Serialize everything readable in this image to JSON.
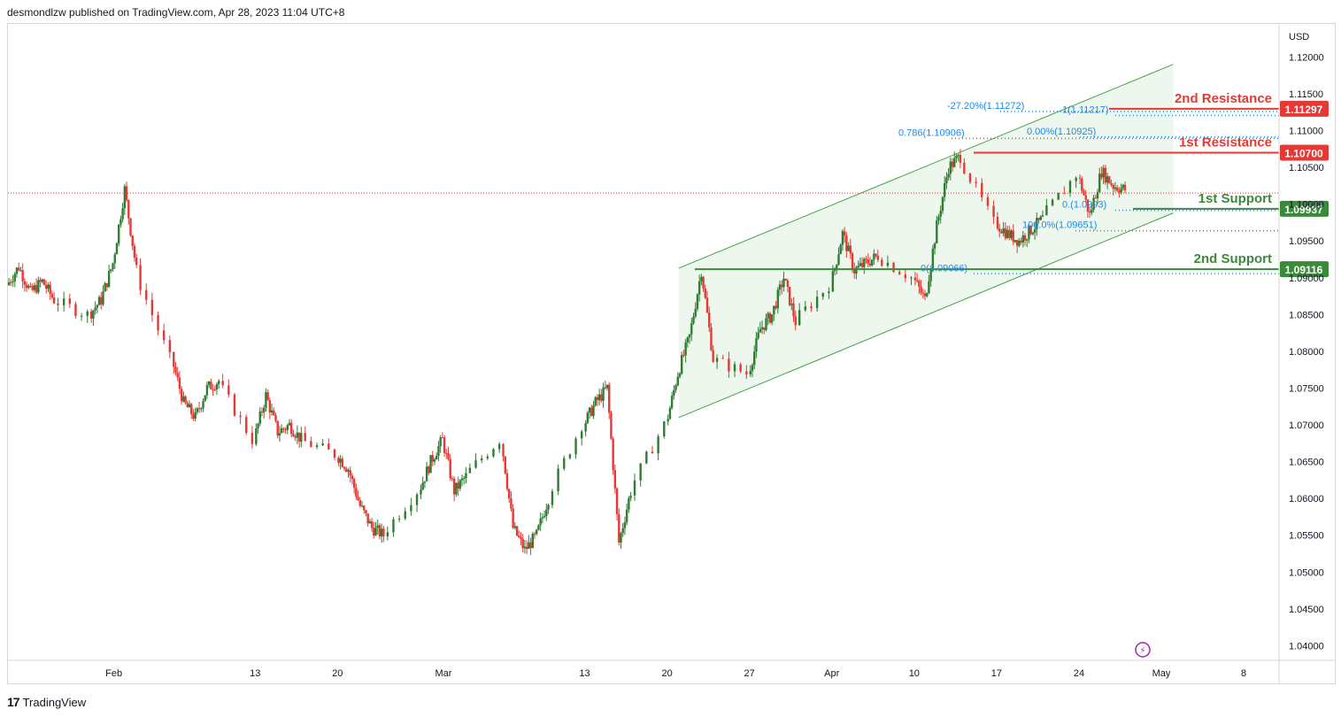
{
  "header": {
    "attribution": "desmondlzw published on TradingView.com, Apr 28, 2023 11:04 UTC+8"
  },
  "footer": {
    "logo_text": "TradingView"
  },
  "colors": {
    "up": "#2e7d32",
    "down": "#e53935",
    "resistance": "#e53935",
    "support": "#3a8a3a",
    "channel_fill": "#e8f5e9",
    "fib": "#1e88e5"
  },
  "chart_data": {
    "type": "candlestick",
    "symbol_currency": "USD",
    "ylim": [
      1.038,
      1.1245
    ],
    "y_ticks": [
      "1.04000",
      "1.04500",
      "1.05000",
      "1.05500",
      "1.06000",
      "1.06500",
      "1.07000",
      "1.07500",
      "1.08000",
      "1.08500",
      "1.09000",
      "1.09500",
      "1.10000",
      "1.10500",
      "1.11000",
      "1.11500",
      "1.12000"
    ],
    "x_ticks": [
      {
        "label": "Feb",
        "date": "2023-02-01"
      },
      {
        "label": "13",
        "date": "2023-02-13"
      },
      {
        "label": "20",
        "date": "2023-02-20"
      },
      {
        "label": "Mar",
        "date": "2023-03-01"
      },
      {
        "label": "13",
        "date": "2023-03-13"
      },
      {
        "label": "20",
        "date": "2023-03-20"
      },
      {
        "label": "27",
        "date": "2023-03-27"
      },
      {
        "label": "Apr",
        "date": "2023-04-03"
      },
      {
        "label": "10",
        "date": "2023-04-10"
      },
      {
        "label": "17",
        "date": "2023-04-17"
      },
      {
        "label": "24",
        "date": "2023-04-24"
      },
      {
        "label": "May",
        "date": "2023-05-01"
      },
      {
        "label": "8",
        "date": "2023-05-08"
      }
    ],
    "price_path": [
      {
        "date": "2023-01-23",
        "price": 1.089
      },
      {
        "date": "2023-01-24",
        "price": 1.0915
      },
      {
        "date": "2023-01-25",
        "price": 1.088
      },
      {
        "date": "2023-01-26",
        "price": 1.0895
      },
      {
        "date": "2023-01-27",
        "price": 1.087
      },
      {
        "date": "2023-01-30",
        "price": 1.085
      },
      {
        "date": "2023-01-31",
        "price": 1.087
      },
      {
        "date": "2023-02-01",
        "price": 1.092
      },
      {
        "date": "2023-02-02",
        "price": 1.102
      },
      {
        "date": "2023-02-03",
        "price": 1.091
      },
      {
        "date": "2023-02-06",
        "price": 1.079
      },
      {
        "date": "2023-02-07",
        "price": 1.073
      },
      {
        "date": "2023-02-08",
        "price": 1.071
      },
      {
        "date": "2023-02-09",
        "price": 1.075
      },
      {
        "date": "2023-02-10",
        "price": 1.076
      },
      {
        "date": "2023-02-13",
        "price": 1.068
      },
      {
        "date": "2023-02-14",
        "price": 1.074
      },
      {
        "date": "2023-02-15",
        "price": 1.069
      },
      {
        "date": "2023-02-16",
        "price": 1.07
      },
      {
        "date": "2023-02-17",
        "price": 1.068
      },
      {
        "date": "2023-02-20",
        "price": 1.066
      },
      {
        "date": "2023-02-21",
        "price": 1.064
      },
      {
        "date": "2023-02-22",
        "price": 1.059
      },
      {
        "date": "2023-02-23",
        "price": 1.056
      },
      {
        "date": "2023-02-24",
        "price": 1.055
      },
      {
        "date": "2023-02-27",
        "price": 1.061
      },
      {
        "date": "2023-02-28",
        "price": 1.065
      },
      {
        "date": "2023-03-01",
        "price": 1.068
      },
      {
        "date": "2023-03-02",
        "price": 1.061
      },
      {
        "date": "2023-03-03",
        "price": 1.063
      },
      {
        "date": "2023-03-06",
        "price": 1.068
      },
      {
        "date": "2023-03-07",
        "price": 1.056
      },
      {
        "date": "2023-03-08",
        "price": 1.053
      },
      {
        "date": "2023-03-09",
        "price": 1.055
      },
      {
        "date": "2023-03-10",
        "price": 1.06
      },
      {
        "date": "2023-03-13",
        "price": 1.07
      },
      {
        "date": "2023-03-14",
        "price": 1.073
      },
      {
        "date": "2023-03-15",
        "price": 1.075
      },
      {
        "date": "2023-03-16",
        "price": 1.054
      },
      {
        "date": "2023-03-17",
        "price": 1.061
      },
      {
        "date": "2023-03-20",
        "price": 1.07
      },
      {
        "date": "2023-03-21",
        "price": 1.077
      },
      {
        "date": "2023-03-22",
        "price": 1.082
      },
      {
        "date": "2023-03-23",
        "price": 1.091
      },
      {
        "date": "2023-03-24",
        "price": 1.079
      },
      {
        "date": "2023-03-27",
        "price": 1.077
      },
      {
        "date": "2023-03-28",
        "price": 1.083
      },
      {
        "date": "2023-03-29",
        "price": 1.085
      },
      {
        "date": "2023-03-30",
        "price": 1.09
      },
      {
        "date": "2023-03-31",
        "price": 1.084
      },
      {
        "date": "2023-04-03",
        "price": 1.089
      },
      {
        "date": "2023-04-04",
        "price": 1.096
      },
      {
        "date": "2023-04-05",
        "price": 1.091
      },
      {
        "date": "2023-04-06",
        "price": 1.092
      },
      {
        "date": "2023-04-07",
        "price": 1.093
      },
      {
        "date": "2023-04-10",
        "price": 1.09
      },
      {
        "date": "2023-04-11",
        "price": 1.087
      },
      {
        "date": "2023-04-12",
        "price": 1.097
      },
      {
        "date": "2023-04-13",
        "price": 1.105
      },
      {
        "date": "2023-04-14",
        "price": 1.1065
      },
      {
        "date": "2023-04-17",
        "price": 1.0975
      },
      {
        "date": "2023-04-18",
        "price": 1.096
      },
      {
        "date": "2023-04-19",
        "price": 1.095
      },
      {
        "date": "2023-04-20",
        "price": 1.0965
      },
      {
        "date": "2023-04-21",
        "price": 1.098
      },
      {
        "date": "2023-04-24",
        "price": 1.104
      },
      {
        "date": "2023-04-25",
        "price": 1.0985
      },
      {
        "date": "2023-04-26",
        "price": 1.1045
      },
      {
        "date": "2023-04-27",
        "price": 1.1025
      },
      {
        "date": "2023-04-28",
        "price": 1.102
      }
    ],
    "current_price_line": 1.1015,
    "levels": [
      {
        "name": "2nd Resistance",
        "value": 1.11297,
        "label": "1.11297",
        "kind": "resistance"
      },
      {
        "name": "1st Resistance",
        "value": 1.107,
        "label": "1.10700",
        "kind": "resistance"
      },
      {
        "name": "1st Support",
        "value": 1.09937,
        "label": "1.09937",
        "kind": "support"
      },
      {
        "name": "2nd Support",
        "value": 1.09116,
        "label": "1.09116",
        "kind": "support"
      }
    ],
    "fib_labels": [
      {
        "text": "-27.20%(1.11272)",
        "value": 1.11272
      },
      {
        "text": "1(1.11217)",
        "value": 1.11217
      },
      {
        "text": "0.00%(1.10925)",
        "value": 1.10925
      },
      {
        "text": "0.786(1.10906)",
        "value": 1.10906
      },
      {
        "text": "0.(1.0993)",
        "value": 1.0993
      },
      {
        "text": "100.0%(1.09651)",
        "value": 1.09651
      },
      {
        "text": "0(1.09066)",
        "value": 1.09066
      }
    ],
    "channel": {
      "upper": [
        {
          "date": "2023-03-21",
          "price": 1.0913
        },
        {
          "date": "2023-05-02",
          "price": 1.119
        }
      ],
      "lower": [
        {
          "date": "2023-03-21",
          "price": 1.071
        },
        {
          "date": "2023-05-02",
          "price": 1.0988
        }
      ]
    },
    "legend": null
  }
}
